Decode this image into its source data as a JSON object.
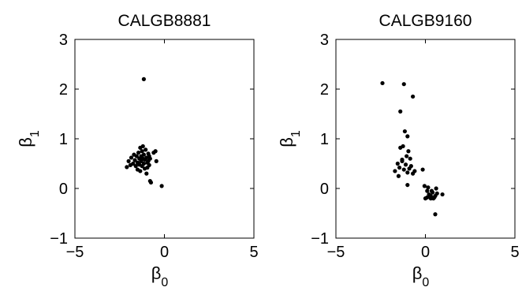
{
  "chart_data": [
    {
      "type": "scatter",
      "title": "CALGB8881",
      "xlabel": "β",
      "xlabel_sub": "0",
      "ylabel": "β",
      "ylabel_sub": "1",
      "xlim": [
        -5,
        5
      ],
      "ylim": [
        -1,
        3
      ],
      "xticks": [
        "−5",
        "0",
        "5"
      ],
      "yticks": [
        "−1",
        "0",
        "1",
        "2",
        "3"
      ],
      "grid": false,
      "marker_color": "#000000",
      "x": [
        -1.15,
        -2.1,
        -2.0,
        -1.9,
        -1.85,
        -1.75,
        -1.7,
        -1.65,
        -1.6,
        -1.55,
        -1.5,
        -1.5,
        -1.45,
        -1.4,
        -1.4,
        -1.35,
        -1.35,
        -1.3,
        -1.3,
        -1.25,
        -1.25,
        -1.2,
        -1.2,
        -1.15,
        -1.15,
        -1.1,
        -1.1,
        -1.05,
        -1.0,
        -1.0,
        -0.95,
        -0.95,
        -0.9,
        -0.9,
        -0.85,
        -0.85,
        -0.8,
        -0.6,
        -0.5,
        -0.45,
        -0.8,
        -0.75,
        -0.15
      ],
      "y": [
        2.2,
        0.43,
        0.55,
        0.47,
        0.62,
        0.5,
        0.68,
        0.57,
        0.45,
        0.65,
        0.38,
        0.52,
        0.72,
        0.6,
        0.48,
        0.82,
        0.35,
        0.65,
        0.55,
        0.75,
        0.45,
        0.6,
        0.85,
        0.5,
        0.68,
        0.4,
        0.58,
        0.78,
        0.3,
        0.62,
        0.52,
        0.42,
        0.7,
        0.55,
        0.65,
        0.47,
        0.6,
        0.72,
        0.75,
        0.55,
        0.15,
        0.12,
        0.05
      ]
    },
    {
      "type": "scatter",
      "title": "CALGB9160",
      "xlabel": "β",
      "xlabel_sub": "0",
      "ylabel": "β",
      "ylabel_sub": "1",
      "xlim": [
        -5,
        5
      ],
      "ylim": [
        -1,
        3
      ],
      "xticks": [
        "−5",
        "0",
        "5"
      ],
      "yticks": [
        "−1",
        "0",
        "1",
        "2",
        "3"
      ],
      "grid": false,
      "marker_color": "#000000",
      "x": [
        -2.4,
        -1.2,
        -0.7,
        -1.4,
        -1.15,
        -1.0,
        -1.25,
        -1.4,
        -0.95,
        -0.85,
        -1.55,
        -1.3,
        -1.1,
        -0.8,
        -1.7,
        -1.45,
        -1.2,
        -1.0,
        -0.7,
        -1.5,
        -1.3,
        -1.05,
        -0.9,
        -0.6,
        -0.15,
        -1.0,
        -0.05,
        0.1,
        0.3,
        0.45,
        0.6,
        0.0,
        0.2,
        0.4,
        0.55,
        0.15,
        0.35,
        0.5,
        0.65,
        0.95,
        0.1,
        0.3,
        0.55
      ],
      "y": [
        2.12,
        2.1,
        1.85,
        1.55,
        1.15,
        1.05,
        0.85,
        0.82,
        0.75,
        0.6,
        0.5,
        0.55,
        0.48,
        0.45,
        0.35,
        0.42,
        0.38,
        0.32,
        0.3,
        0.25,
        0.58,
        0.65,
        0.4,
        0.35,
        0.38,
        0.07,
        0.05,
        -0.05,
        -0.15,
        -0.2,
        0.0,
        -0.2,
        -0.12,
        -0.08,
        -0.15,
        0.02,
        -0.05,
        -0.18,
        -0.1,
        -0.12,
        -0.18,
        -0.2,
        -0.52
      ]
    }
  ]
}
